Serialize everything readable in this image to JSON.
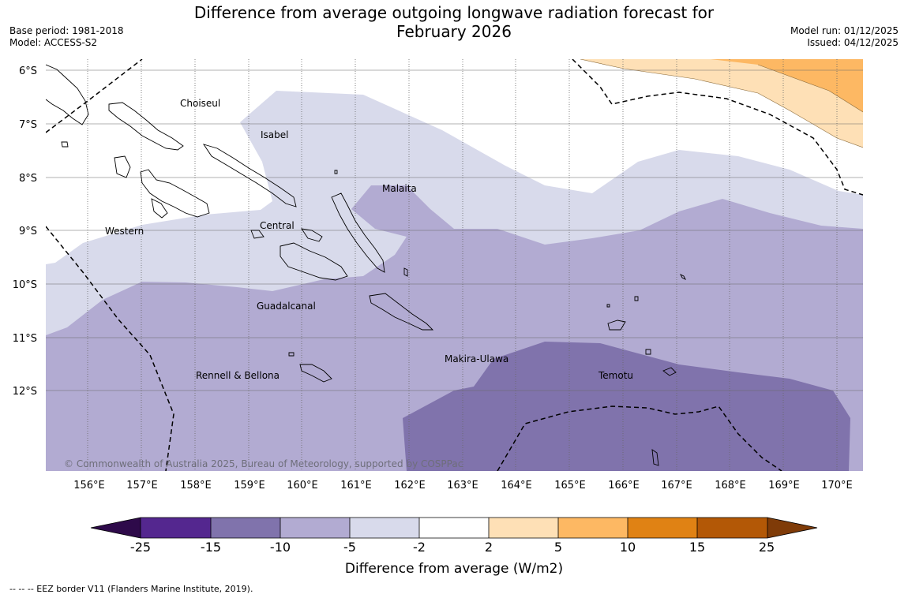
{
  "title": {
    "line1": "Difference from average outgoing longwave radiation forecast for",
    "line2": "February 2026"
  },
  "meta_left": {
    "base_period": "Base period: 1981-2018",
    "model": "Model: ACCESS-S2"
  },
  "meta_right": {
    "model_run": "Model run: 01/12/2025",
    "issued": "Issued: 04/12/2025"
  },
  "map": {
    "lat_labels": [
      "6°S",
      "7°S",
      "8°S",
      "9°S",
      "10°S",
      "11°S",
      "12°S"
    ],
    "lon_labels": [
      "156°E",
      "157°E",
      "158°E",
      "159°E",
      "160°E",
      "161°E",
      "162°E",
      "163°E",
      "164°E",
      "165°E",
      "166°E",
      "167°E",
      "168°E",
      "169°E",
      "170°E"
    ],
    "places": {
      "choiseul": "Choiseul",
      "isabel": "Isabel",
      "malaita": "Malaita",
      "central": "Central",
      "western": "Western",
      "guadalcanal": "Guadalcanal",
      "makira": "Makira-Ulawa",
      "rennell": "Rennell & Bellona",
      "temotu": "Temotu"
    },
    "copyright": "© Commonwealth of Australia 2025, Bureau of Meteorology, supported by COSPPac"
  },
  "colorbar": {
    "ticks": [
      "-25",
      "-15",
      "-10",
      "-5",
      "-2",
      "2",
      "5",
      "10",
      "15",
      "25"
    ],
    "colors": {
      "below_min": "#2e0a4a",
      "b1": "#54278f",
      "b2": "#8073ac",
      "b3": "#b2abd2",
      "b4": "#d8daeb",
      "b5": "#ffffff",
      "b6": "#fee0b6",
      "b7": "#fdb863",
      "b8": "#e08214",
      "b9": "#b35806",
      "above_max": "#7f3b08"
    },
    "label": "Difference from average (W/m2)"
  },
  "footnote": "--  --  -- EEZ border V11 (Flanders Marine Institute, 2019)."
}
